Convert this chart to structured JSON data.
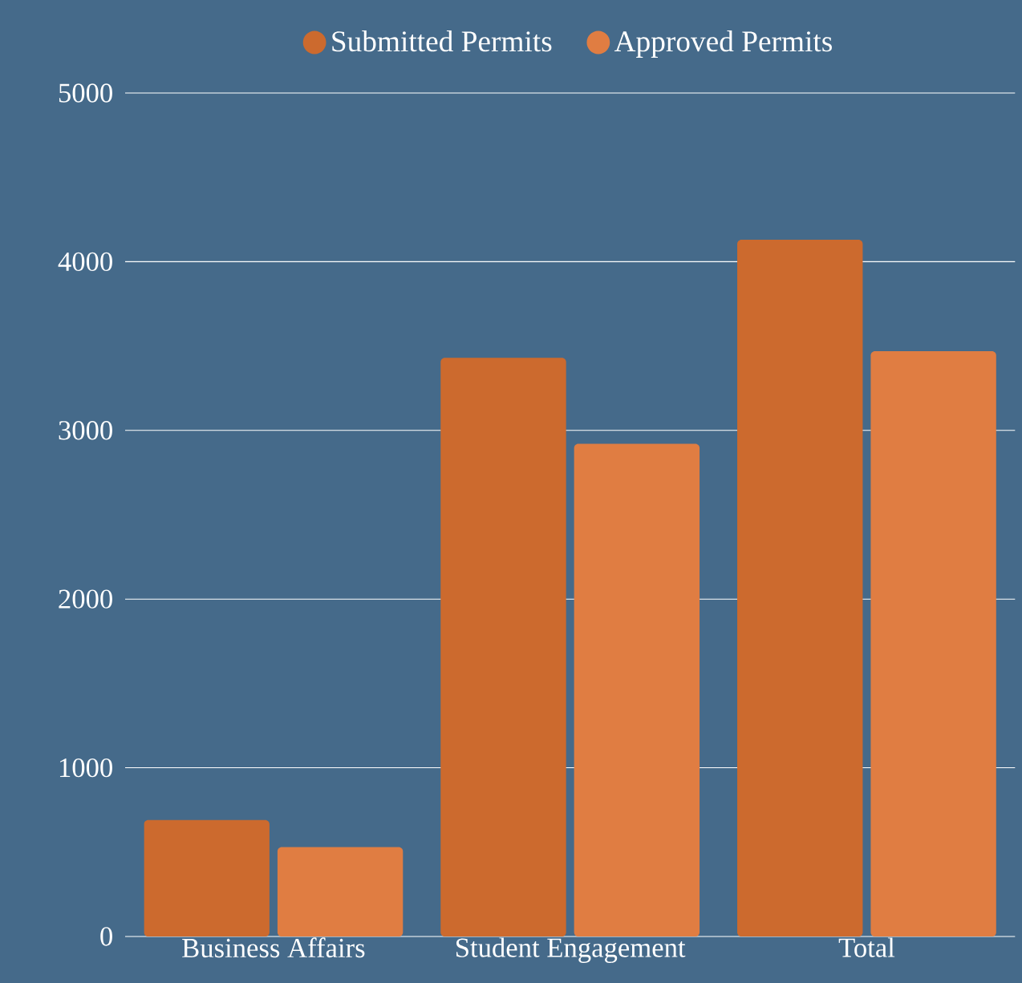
{
  "chart_data": {
    "type": "bar",
    "categories": [
      "Business Affairs",
      "Student Engagement",
      "Total"
    ],
    "series": [
      {
        "name": "Submitted Permits",
        "color": "#cc6a2e",
        "values": [
          690,
          3430,
          4130
        ]
      },
      {
        "name": "Approved Permits",
        "color": "#e07d42",
        "values": [
          530,
          2920,
          3470
        ]
      }
    ],
    "ylim": [
      0,
      5000
    ],
    "yticks": [
      0,
      1000,
      2000,
      3000,
      4000,
      5000
    ],
    "grid": "y",
    "legend": "top"
  }
}
